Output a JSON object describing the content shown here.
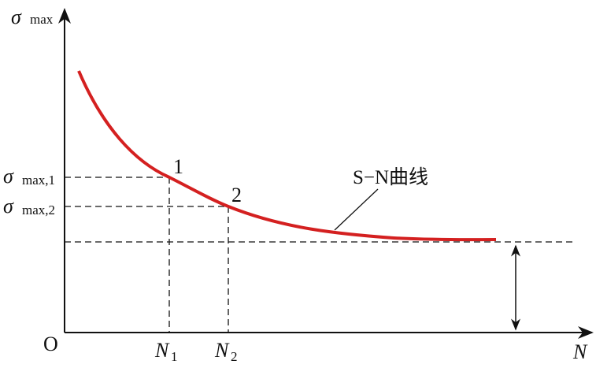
{
  "axes": {
    "y_label": {
      "symbol": "σ",
      "subscript": "max"
    },
    "x_label": "N",
    "origin": "O"
  },
  "levels": [
    {
      "symbol": "σ",
      "subscript": "max,1"
    },
    {
      "symbol": "σ",
      "subscript": "max,2"
    }
  ],
  "cycles": [
    {
      "symbol": "N",
      "subscript": "1"
    },
    {
      "symbol": "N",
      "subscript": "2"
    }
  ],
  "points": [
    "1",
    "2"
  ],
  "curve_label": "S−N曲线"
}
